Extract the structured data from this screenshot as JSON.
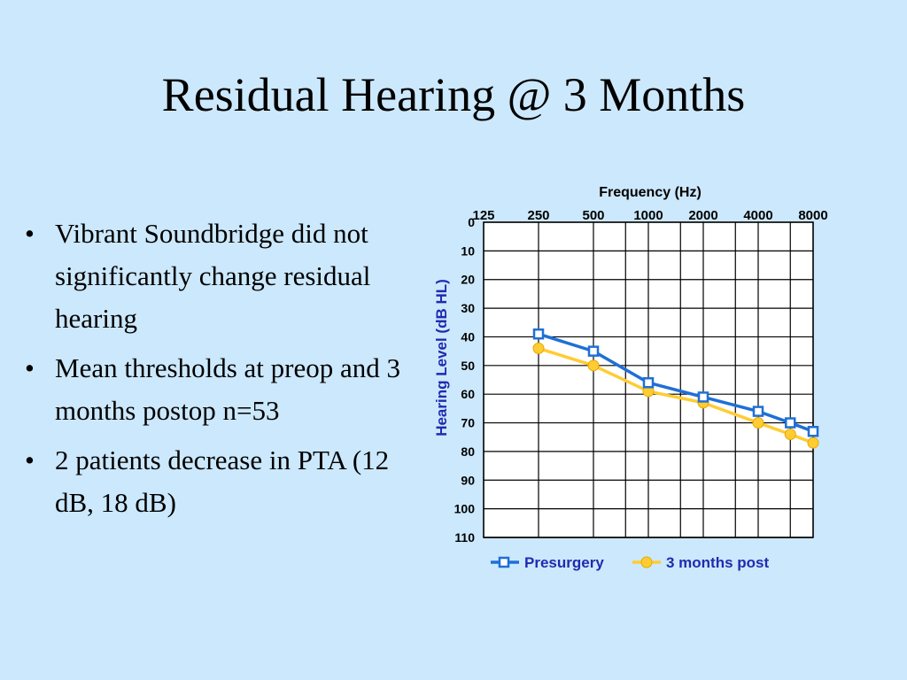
{
  "slide": {
    "title": "Residual Hearing @ 3 Months",
    "bullet_glyph": "•",
    "bullets": [
      "Vibrant Soundbridge did not significantly change residual hearing",
      "Mean thresholds at preop and 3 months postop n=53",
      "2 patients decrease in PTA (12 dB, 18 dB)"
    ]
  },
  "chart_data": {
    "type": "line",
    "xlabel": "Frequency (Hz)",
    "ylabel": "Hearing Level (dB HL)",
    "x_ticks": [
      "125",
      "250",
      "500",
      "1000",
      "2000",
      "4000",
      "8000"
    ],
    "y_ticks": [
      "0",
      "10",
      "20",
      "30",
      "40",
      "50",
      "60",
      "70",
      "80",
      "90",
      "100",
      "110"
    ],
    "ylim": [
      0,
      110
    ],
    "y_inverted": true,
    "x_scale": "log",
    "grid": true,
    "legend_position": "bottom",
    "x": [
      250,
      500,
      1000,
      2000,
      4000,
      6000,
      8000
    ],
    "series": [
      {
        "name": "Presurgery",
        "color": "#1f6fd6",
        "marker": "square",
        "values": [
          39,
          45,
          56,
          61,
          66,
          70,
          73
        ]
      },
      {
        "name": "3 months post",
        "color": "#ffcc33",
        "marker": "circle",
        "values": [
          44,
          50,
          59,
          63,
          70,
          74,
          77
        ]
      }
    ],
    "colors": {
      "axis_label": "#1f2bb0",
      "legend_text": "#1f2bb0",
      "grid": "#000000",
      "plot_background": "#ffffff"
    }
  }
}
